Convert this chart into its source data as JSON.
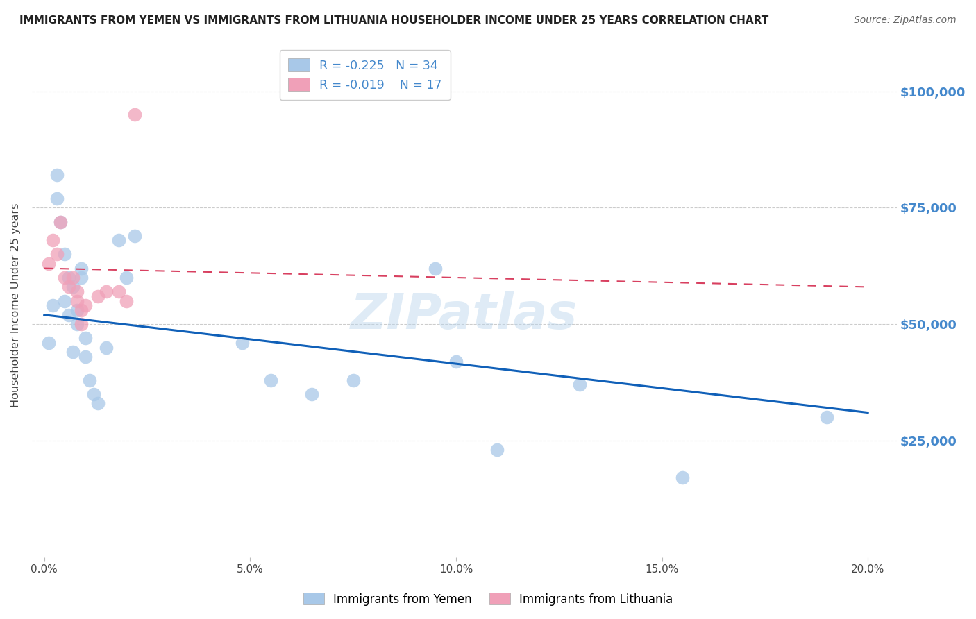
{
  "title": "IMMIGRANTS FROM YEMEN VS IMMIGRANTS FROM LITHUANIA HOUSEHOLDER INCOME UNDER 25 YEARS CORRELATION CHART",
  "source": "Source: ZipAtlas.com",
  "ylabel": "Householder Income Under 25 years",
  "xlabel_ticks": [
    "0.0%",
    "5.0%",
    "10.0%",
    "15.0%",
    "20.0%"
  ],
  "xlabel_vals": [
    0.0,
    0.05,
    0.1,
    0.15,
    0.2
  ],
  "ytick_labels": [
    "$25,000",
    "$50,000",
    "$75,000",
    "$100,000"
  ],
  "ytick_vals": [
    25000,
    50000,
    75000,
    100000
  ],
  "ylim": [
    0,
    108000
  ],
  "xlim": [
    -0.003,
    0.207
  ],
  "yemen_R": -0.225,
  "yemen_N": 34,
  "lith_R": -0.019,
  "lith_N": 17,
  "yemen_color": "#a8c8e8",
  "lith_color": "#f0a0b8",
  "yemen_line_color": "#1060b8",
  "lith_line_color": "#d84060",
  "watermark": "ZIPatlas",
  "background_color": "#ffffff",
  "grid_color": "#cccccc",
  "right_label_color": "#4488cc",
  "title_color": "#222222",
  "yemen_x": [
    0.001,
    0.002,
    0.003,
    0.003,
    0.004,
    0.005,
    0.005,
    0.006,
    0.006,
    0.007,
    0.007,
    0.008,
    0.008,
    0.009,
    0.009,
    0.01,
    0.01,
    0.011,
    0.012,
    0.013,
    0.015,
    0.018,
    0.02,
    0.022,
    0.048,
    0.055,
    0.065,
    0.075,
    0.095,
    0.1,
    0.11,
    0.13,
    0.155,
    0.19
  ],
  "yemen_y": [
    46000,
    54000,
    77000,
    82000,
    72000,
    55000,
    65000,
    60000,
    52000,
    44000,
    58000,
    50000,
    53000,
    60000,
    62000,
    47000,
    43000,
    38000,
    35000,
    33000,
    45000,
    68000,
    60000,
    69000,
    46000,
    38000,
    35000,
    38000,
    62000,
    42000,
    23000,
    37000,
    17000,
    30000
  ],
  "lith_x": [
    0.001,
    0.002,
    0.003,
    0.004,
    0.005,
    0.006,
    0.007,
    0.008,
    0.008,
    0.009,
    0.009,
    0.01,
    0.013,
    0.015,
    0.018,
    0.02,
    0.022
  ],
  "lith_y": [
    63000,
    68000,
    65000,
    72000,
    60000,
    58000,
    60000,
    55000,
    57000,
    53000,
    50000,
    54000,
    56000,
    57000,
    57000,
    55000,
    95000
  ],
  "yemen_trendline_x": [
    0.0,
    0.2
  ],
  "yemen_trendline_y": [
    52000,
    31000
  ],
  "lith_trendline_x": [
    0.0,
    0.2
  ],
  "lith_trendline_y": [
    62000,
    58000
  ]
}
